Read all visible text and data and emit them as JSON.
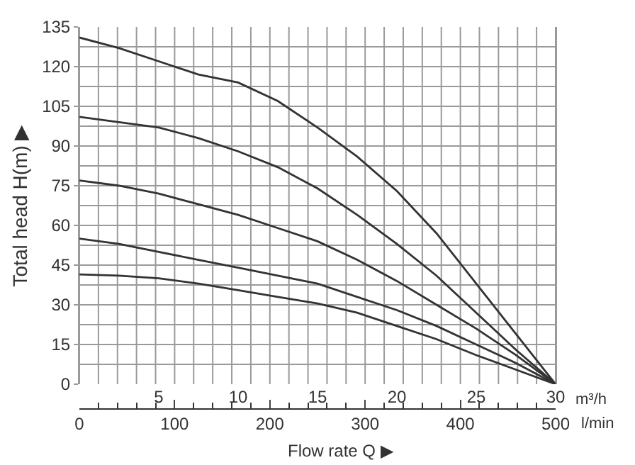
{
  "chart_data": {
    "type": "line",
    "ylabel": "Total head H(m) ▶",
    "xlabel": "m³/h",
    "x2label": "l/min",
    "annotations": [
      "Flow rate Q ▶"
    ],
    "x": [
      0,
      2.5,
      5,
      7.5,
      10,
      12.5,
      15,
      17.5,
      20,
      22.5,
      25,
      27.5,
      30
    ],
    "series": [
      {
        "color": "#333333",
        "values": [
          131,
          127,
          122,
          117,
          114,
          107,
          97,
          86,
          73,
          57,
          38,
          19,
          0
        ]
      },
      {
        "color": "#333333",
        "values": [
          101,
          99,
          97,
          93,
          88,
          82,
          74,
          64,
          53,
          41,
          27,
          13,
          0
        ]
      },
      {
        "color": "#333333",
        "values": [
          77,
          75,
          72,
          68,
          64,
          59,
          54,
          47,
          39,
          30,
          21,
          11,
          0
        ]
      },
      {
        "color": "#333333",
        "values": [
          55,
          53,
          50,
          47,
          44,
          41,
          38,
          33,
          28,
          22,
          15,
          8,
          0
        ]
      },
      {
        "color": "#333333",
        "values": [
          41.5,
          41,
          40,
          38,
          35.5,
          33,
          30.5,
          27,
          22,
          17,
          11,
          5.5,
          0
        ]
      }
    ],
    "xlim": [
      0,
      30
    ],
    "xticks": [
      5,
      10,
      15,
      20,
      25,
      30
    ],
    "x2lim": [
      0,
      500
    ],
    "x2ticks": [
      0,
      100,
      200,
      300,
      400,
      500
    ],
    "ylim": [
      0,
      135
    ],
    "yticks": [
      0,
      15,
      30,
      45,
      60,
      75,
      90,
      105,
      120,
      135
    ],
    "grid": true,
    "marker": "none",
    "line_style": "solid"
  }
}
